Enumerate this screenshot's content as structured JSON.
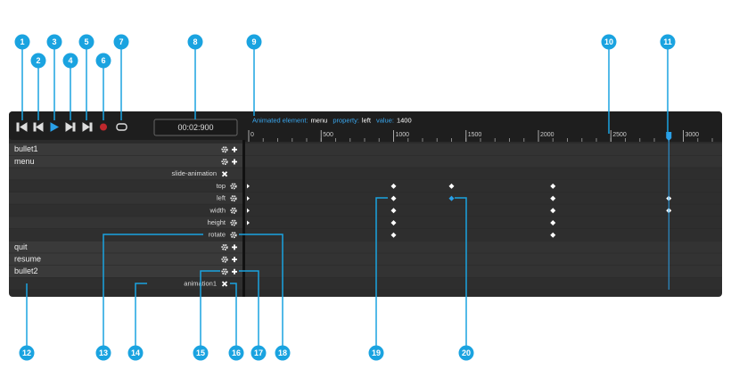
{
  "toolbar": {
    "time": "00:02:900"
  },
  "status": [
    {
      "label": "Animated element:",
      "value": "menu"
    },
    {
      "label": "property:",
      "value": "left"
    },
    {
      "label": "value:",
      "value": "1400"
    }
  ],
  "ruler": {
    "ticks": [
      0,
      500,
      1000,
      1500,
      2000,
      2500,
      3000
    ]
  },
  "playhead_ms": 2900,
  "rows": [
    {
      "label": "bullet1",
      "level": 0
    },
    {
      "label": "menu",
      "level": 0
    },
    {
      "label": "slide-animation",
      "level": 1
    },
    {
      "label": "top",
      "level": 2,
      "keyframes": [
        1000,
        1400,
        2100
      ]
    },
    {
      "label": "left",
      "level": 2,
      "keyframes": [
        1000,
        1400,
        2100,
        2900
      ]
    },
    {
      "label": "width",
      "level": 2,
      "keyframes": [
        1000,
        2100,
        2900
      ]
    },
    {
      "label": "height",
      "level": 2,
      "keyframes": [
        1000,
        2100
      ]
    },
    {
      "label": "rotate",
      "level": 2,
      "keyframes": [
        1000,
        2100
      ]
    },
    {
      "label": "quit",
      "level": 0
    },
    {
      "label": "resume",
      "level": 0
    },
    {
      "label": "bullet2",
      "level": 0
    },
    {
      "label": "animation1",
      "level": 1
    }
  ],
  "callouts": [
    "1",
    "2",
    "3",
    "4",
    "5",
    "6",
    "7",
    "8",
    "9",
    "10",
    "11",
    "12",
    "13",
    "14",
    "15",
    "16",
    "17",
    "18",
    "19",
    "20"
  ]
}
